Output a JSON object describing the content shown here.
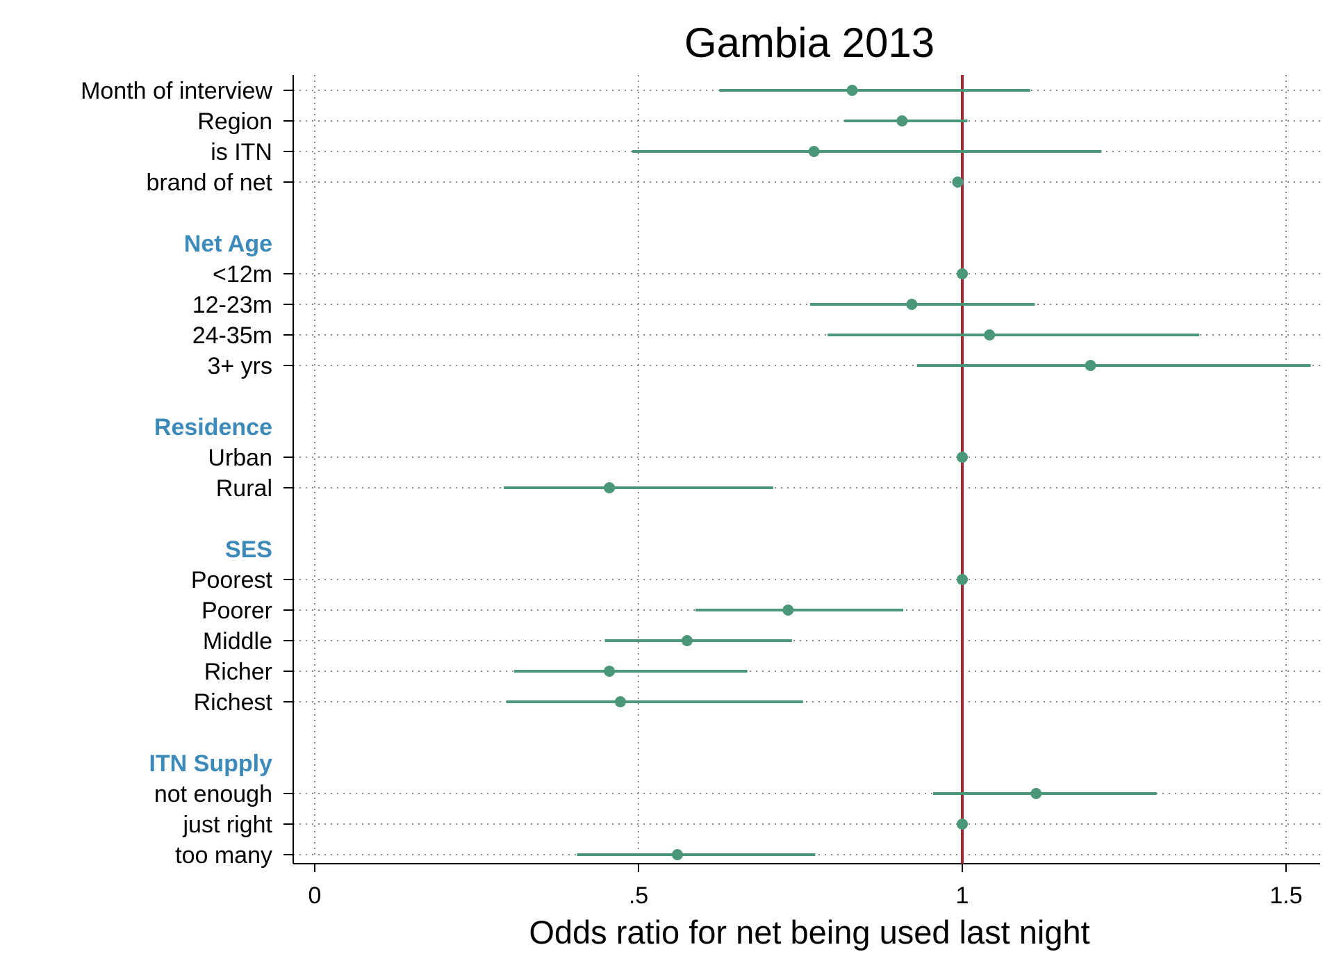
{
  "chart_data": {
    "type": "scatter",
    "subtype": "forest-plot",
    "title": "Gambia 2013",
    "xlabel": "Odds ratio for net being used last night",
    "ylabel": "",
    "xlim": [
      -0.03,
      1.57
    ],
    "xticks": [
      0,
      0.5,
      1,
      1.5
    ],
    "xtick_labels": [
      "0",
      ".5",
      "1",
      "1.5"
    ],
    "reference_line": 1,
    "grid": "dotted",
    "colors": {
      "point": "#4a977a",
      "reference": "#a3282f",
      "header": "#3c8ab9",
      "grid": "#888888"
    },
    "rows": [
      {
        "label": "Month of interview",
        "or": 0.83,
        "lo": 0.625,
        "hi": 1.105
      },
      {
        "label": "Region",
        "or": 0.907,
        "lo": 0.818,
        "hi": 1.008
      },
      {
        "label": "is ITN",
        "or": 0.771,
        "lo": 0.49,
        "hi": 1.215
      },
      {
        "label": "brand of net",
        "or": 0.993,
        "lo": 0.99,
        "hi": 0.997
      },
      {
        "gap": true
      },
      {
        "header": "Net Age"
      },
      {
        "label": "<12m",
        "or": 1.0
      },
      {
        "label": "12-23m",
        "or": 0.922,
        "lo": 0.765,
        "hi": 1.112
      },
      {
        "label": "24-35m",
        "or": 1.042,
        "lo": 0.792,
        "hi": 1.366
      },
      {
        "label": "3+ yrs",
        "or": 1.198,
        "lo": 0.93,
        "hi": 1.538
      },
      {
        "gap": true
      },
      {
        "header": "Residence"
      },
      {
        "label": "Urban",
        "or": 1.0
      },
      {
        "label": "Rural",
        "or": 0.455,
        "lo": 0.292,
        "hi": 0.708
      },
      {
        "gap": true
      },
      {
        "header": "SES"
      },
      {
        "label": "Poorest",
        "or": 1.0
      },
      {
        "label": "Poorer",
        "or": 0.731,
        "lo": 0.588,
        "hi": 0.909
      },
      {
        "label": "Middle",
        "or": 0.575,
        "lo": 0.448,
        "hi": 0.737
      },
      {
        "label": "Richer",
        "or": 0.455,
        "lo": 0.308,
        "hi": 0.668
      },
      {
        "label": "Richest",
        "or": 0.472,
        "lo": 0.296,
        "hi": 0.754
      },
      {
        "gap": true
      },
      {
        "header": "ITN Supply"
      },
      {
        "label": "not enough",
        "or": 1.114,
        "lo": 0.955,
        "hi": 1.3
      },
      {
        "label": "just right",
        "or": 1.0
      },
      {
        "label": "too many",
        "or": 0.56,
        "lo": 0.405,
        "hi": 0.773
      }
    ]
  }
}
